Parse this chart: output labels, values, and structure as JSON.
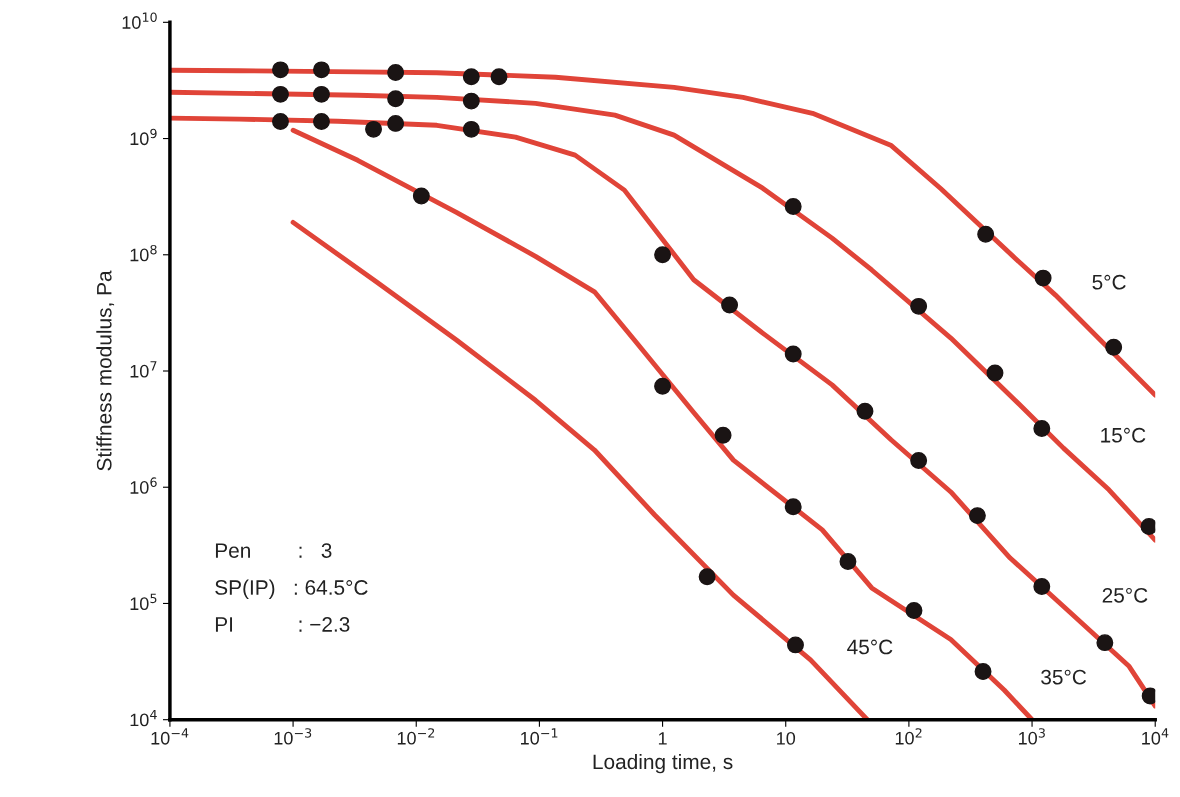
{
  "chart_data": {
    "type": "line",
    "xlabel": "Loading time, s",
    "ylabel": "Stiffness modulus, Pa",
    "log": "xy",
    "grid": false,
    "legend": false,
    "xlim": [
      0.0001,
      10000
    ],
    "ylim": [
      10000,
      10000000000
    ],
    "xticks": [
      {
        "value": 0.0001,
        "label": "10$^{−4}$"
      },
      {
        "value": 0.001,
        "label": "10$^{−3}$"
      },
      {
        "value": 0.01,
        "label": "10$^{−2}$"
      },
      {
        "value": 0.1,
        "label": "10$^{−1}$"
      },
      1,
      10,
      {
        "value": 100,
        "label": "10$^{2}$"
      },
      {
        "value": 1000,
        "label": "10$^{3}$"
      },
      {
        "value": 10000,
        "label": "10$^{4}$"
      }
    ],
    "yticks": [
      {
        "value": 10000,
        "label": "10$^{4}$"
      },
      {
        "value": 100000,
        "label": "10$^{5}$"
      },
      {
        "value": 1000000,
        "label": "10$^{6}$"
      },
      {
        "value": 10000000,
        "label": "10$^{7}$"
      },
      {
        "value": 100000000,
        "label": "10$^{8}$"
      },
      {
        "value": 1000000000,
        "label": "10$^{9}$"
      },
      {
        "value": 10000000000,
        "label": "10$^{10}$"
      }
    ],
    "series": [
      {
        "color": "#e04438",
        "marker": "none",
        "x": [
          0.0001,
          0.000365,
          0.00335,
          0.0147,
          0.135,
          1.24,
          4.5,
          16.5,
          72,
          182,
          728,
          1550,
          10000
        ],
        "values": [
          3870000000.0,
          3830000000.0,
          3750000000.0,
          3680000000.0,
          3370000000.0,
          2760000000.0,
          2260000000.0,
          1650000000.0,
          870000000.0,
          370000000.0,
          93500000.0,
          45000000.0,
          6200000.0
        ]
      },
      {
        "color": "#e04438",
        "marker": "none",
        "x": [
          0.0001,
          0.000365,
          0.00335,
          0.0147,
          0.093,
          0.41,
          1.24,
          3.76,
          6.5,
          23.8,
          49.9,
          219,
          798,
          1800,
          4210,
          10000
        ],
        "values": [
          2500000000.0,
          2450000000.0,
          2360000000.0,
          2260000000.0,
          2010000000.0,
          1590000000.0,
          1070000000.0,
          530000000.0,
          374000000.0,
          139000000.0,
          74000000.0,
          19200000.0,
          5100000.0,
          2170000.0,
          950000.0,
          350000.0
        ]
      },
      {
        "color": "#e04438",
        "marker": "none",
        "x": [
          0.0001,
          0.000365,
          0.00231,
          0.0147,
          0.064,
          0.195,
          0.49,
          1.79,
          6.5,
          23.8,
          72,
          219,
          664,
          1870,
          6100,
          10000
        ],
        "values": [
          1500000000.0,
          1470000000.0,
          1410000000.0,
          1300000000.0,
          1030000000.0,
          720000000.0,
          360000000.0,
          61000000.0,
          21200000.0,
          7600000.0,
          2550000.0,
          910000.0,
          246000.0,
          91000.0,
          29000.0,
          13100.0
        ]
      },
      {
        "color": "#e04438",
        "marker": "none",
        "x": [
          0.001,
          0.00335,
          0.0212,
          0.093,
          0.28,
          0.59,
          1.79,
          3.76,
          19.8,
          49.9,
          219,
          594,
          1000
        ],
        "values": [
          1180000000.0,
          650000000.0,
          232000000.0,
          97000000.0,
          48000000.0,
          18500000.0,
          4400000.0,
          1710000.0,
          430000.0,
          136000.0,
          49000.0,
          18000.0,
          10000.0
        ]
      },
      {
        "color": "#e04438",
        "marker": "none",
        "x": [
          0.001,
          0.0048,
          0.0212,
          0.093,
          0.28,
          0.86,
          3.76,
          15.9,
          46
        ],
        "values": [
          190000000.0,
          58000000.0,
          18500000.0,
          5600000.0,
          2090000.0,
          580000.0,
          118000.0,
          32700.0,
          10000.0
        ]
      },
      {
        "type": "scatter",
        "color": "#1a1414",
        "marker": "circle",
        "x": [
          0.00079,
          0.0017,
          0.0068,
          0.028,
          0.047,
          420,
          1230,
          4600
        ],
        "values": [
          3900000000.0,
          3900000000.0,
          3700000000.0,
          3400000000.0,
          3400000000.0,
          150000000.0,
          63000000.0,
          16000000.0
        ]
      },
      {
        "type": "scatter",
        "color": "#1a1414",
        "marker": "circle",
        "x": [
          0.00079,
          0.0017,
          0.0068,
          0.028,
          11.5,
          120,
          500,
          1200,
          8900
        ],
        "values": [
          2400000000.0,
          2400000000.0,
          2200000000.0,
          2100000000.0,
          260000000.0,
          36000000.0,
          9600000.0,
          3200000.0,
          460000.0
        ]
      },
      {
        "type": "scatter",
        "color": "#1a1414",
        "marker": "circle",
        "x": [
          0.00079,
          0.0017,
          0.0045,
          0.0068,
          0.028,
          1,
          3.5,
          11.5,
          44,
          120,
          360,
          1200,
          3900,
          9100
        ],
        "values": [
          1400000000.0,
          1400000000.0,
          1200000000.0,
          1350000000.0,
          1200000000.0,
          100000000.0,
          37000000.0,
          14000000.0,
          4500000.0,
          1700000.0,
          570000.0,
          140000.0,
          46000.0,
          16000.0
        ]
      },
      {
        "type": "scatter",
        "color": "#1a1414",
        "marker": "circle",
        "x": [
          0.011,
          1,
          3.1,
          11.5,
          32,
          110,
          400
        ],
        "values": [
          320000000.0,
          7400000.0,
          2800000.0,
          680000.0,
          230000.0,
          87000.0,
          26000.0
        ]
      },
      {
        "type": "scatter",
        "color": "#1a1414",
        "marker": "circle",
        "x": [
          2.3,
          12
        ],
        "values": [
          170000.0,
          44000.0
        ]
      }
    ],
    "annotations": [
      {
        "text": "5°C",
        "x": 1550,
        "y": 45000000.0
      },
      {
        "text": "15°C",
        "x": 1800,
        "y": 2170000.0
      },
      {
        "text": "25°C",
        "x": 1870,
        "y": 91000.0
      },
      {
        "text": "35°C",
        "x": 594,
        "y": 18000.0
      },
      {
        "text": "45°C",
        "x": 15.9,
        "y": 32700.0
      },
      "Pen        :   3",
      "SP(IP)   : 64.5°C",
      "PI           : −2.3"
    ]
  }
}
